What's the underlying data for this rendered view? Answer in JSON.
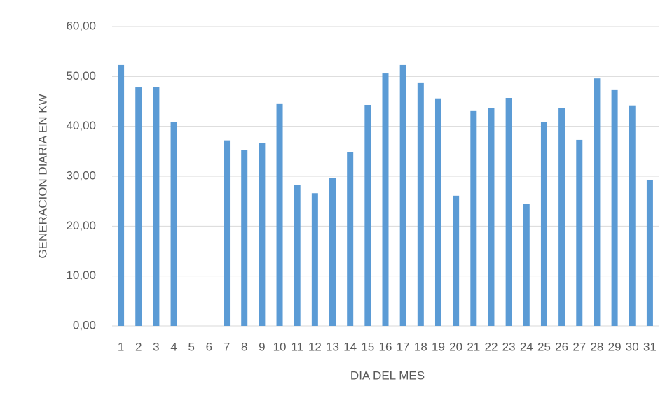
{
  "chart_data": {
    "type": "bar",
    "xlabel": "DIA DEL MES",
    "ylabel": "GENERACION DIARIA EN KW",
    "categories": [
      "1",
      "2",
      "3",
      "4",
      "5",
      "6",
      "7",
      "8",
      "9",
      "10",
      "11",
      "12",
      "13",
      "14",
      "15",
      "16",
      "17",
      "18",
      "19",
      "20",
      "21",
      "22",
      "23",
      "24",
      "25",
      "26",
      "27",
      "28",
      "29",
      "30",
      "31"
    ],
    "values": [
      52.3,
      47.8,
      47.9,
      40.9,
      0,
      0,
      37.2,
      35.2,
      36.7,
      44.6,
      28.2,
      26.6,
      29.6,
      34.8,
      44.3,
      50.6,
      52.3,
      48.8,
      45.6,
      26.1,
      43.2,
      43.6,
      45.7,
      24.5,
      40.9,
      43.6,
      37.3,
      49.6,
      47.4,
      44.2,
      29.3
    ],
    "color": "#5b9bd5",
    "ylim": [
      0,
      60
    ],
    "yticks": [
      {
        "value": 0,
        "label": "0,00"
      },
      {
        "value": 10,
        "label": "10,00"
      },
      {
        "value": 20,
        "label": "20,00"
      },
      {
        "value": 30,
        "label": "30,00"
      },
      {
        "value": 40,
        "label": "40,00"
      },
      {
        "value": 50,
        "label": "50,00"
      },
      {
        "value": 60,
        "label": "60,00"
      }
    ],
    "grid": true
  }
}
